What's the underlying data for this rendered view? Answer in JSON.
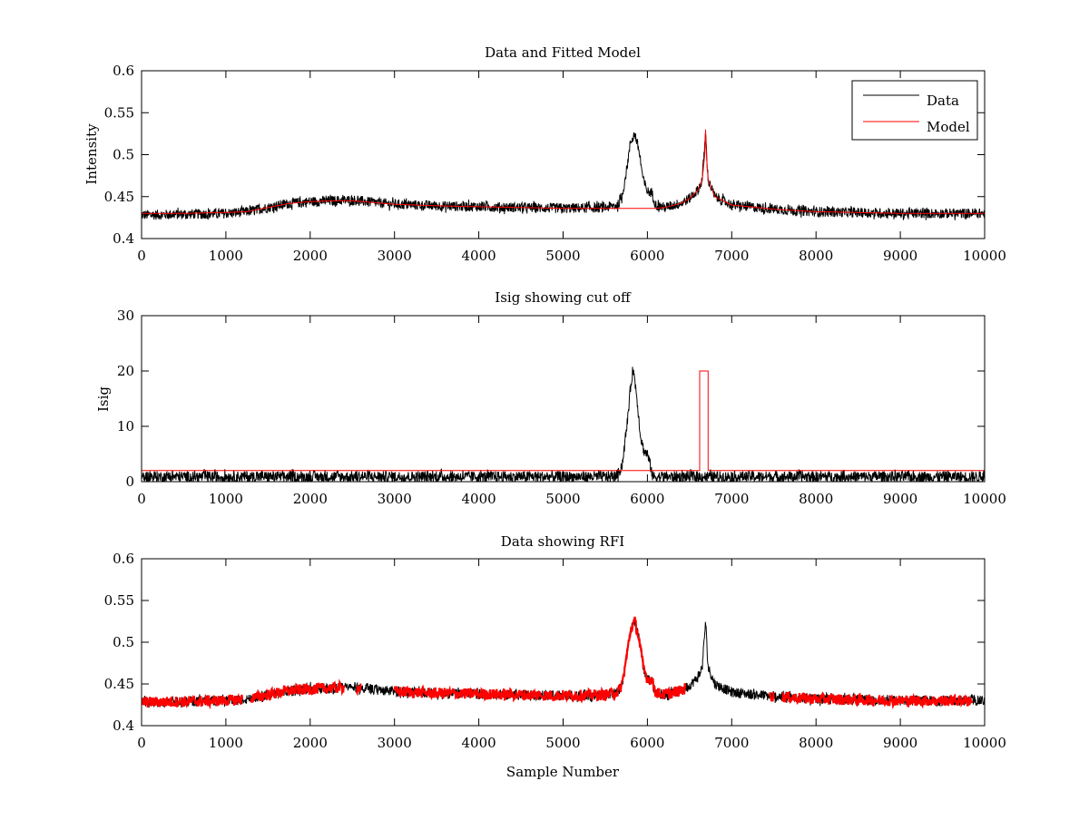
{
  "chart_data": [
    {
      "type": "line",
      "title": "Data and Fitted Model",
      "xlabel": "",
      "ylabel": "Intensity",
      "xlim": [
        0,
        10000
      ],
      "ylim": [
        0.4,
        0.6
      ],
      "xticks": [
        0,
        1000,
        2000,
        3000,
        4000,
        5000,
        6000,
        7000,
        8000,
        9000,
        10000
      ],
      "yticks": [
        0.4,
        0.45,
        0.5,
        0.55,
        0.6
      ],
      "ytick_labels": [
        "0.4",
        "0.45",
        "0.5",
        "0.55",
        "0.6"
      ],
      "legend": {
        "placement": "top-right",
        "entries": [
          "Data",
          "Model"
        ]
      },
      "series": [
        {
          "name": "Data",
          "color": "#000000",
          "noise": 0.006,
          "x": [
            0,
            500,
            1000,
            1250,
            1500,
            1750,
            2000,
            2250,
            2500,
            2750,
            3000,
            3500,
            4000,
            4500,
            5000,
            5500,
            5650,
            5700,
            5750,
            5800,
            5850,
            5900,
            5950,
            6000,
            6050,
            6100,
            6200,
            6400,
            6500,
            6600,
            6650,
            6690,
            6720,
            6800,
            7000,
            7500,
            8000,
            9000,
            10000
          ],
          "y": [
            0.428,
            0.429,
            0.43,
            0.432,
            0.437,
            0.442,
            0.444,
            0.445,
            0.446,
            0.443,
            0.441,
            0.439,
            0.438,
            0.437,
            0.436,
            0.437,
            0.44,
            0.45,
            0.48,
            0.515,
            0.525,
            0.505,
            0.47,
            0.456,
            0.455,
            0.44,
            0.437,
            0.442,
            0.448,
            0.458,
            0.47,
            0.525,
            0.47,
            0.45,
            0.44,
            0.435,
            0.432,
            0.43,
            0.43
          ]
        },
        {
          "name": "Model",
          "color": "#ff0000",
          "noise": 0,
          "x": [
            0,
            500,
            1000,
            1250,
            1500,
            1750,
            2000,
            2250,
            2500,
            2750,
            3000,
            3500,
            4000,
            4500,
            5000,
            5500,
            5650,
            6100,
            6200,
            6400,
            6500,
            6600,
            6650,
            6680,
            6690,
            6700,
            6720,
            6800,
            7000,
            7500,
            8000,
            9000,
            10000
          ],
          "y": [
            0.43,
            0.43,
            0.431,
            0.432,
            0.437,
            0.442,
            0.444,
            0.445,
            0.445,
            0.443,
            0.441,
            0.439,
            0.438,
            0.437,
            0.436,
            0.436,
            0.436,
            0.436,
            0.437,
            0.442,
            0.448,
            0.458,
            0.47,
            0.5,
            0.53,
            0.5,
            0.47,
            0.45,
            0.44,
            0.435,
            0.432,
            0.43,
            0.43
          ]
        }
      ]
    },
    {
      "type": "line",
      "title": "Isig showing cut off",
      "xlabel": "",
      "ylabel": "Isig",
      "xlim": [
        0,
        10000
      ],
      "ylim": [
        0,
        30
      ],
      "xticks": [
        0,
        1000,
        2000,
        3000,
        4000,
        5000,
        6000,
        7000,
        8000,
        9000,
        10000
      ],
      "yticks": [
        0,
        10,
        20,
        30
      ],
      "ytick_labels": [
        "0",
        "10",
        "20",
        "30"
      ],
      "series": [
        {
          "name": "Isig",
          "color": "#000000",
          "noise": 1.0,
          "x": [
            0,
            5600,
            5650,
            5700,
            5750,
            5800,
            5830,
            5870,
            5920,
            5960,
            6000,
            6050,
            6060,
            10000
          ],
          "y": [
            0.9,
            0.9,
            1.3,
            3,
            9,
            17,
            20.5,
            16,
            8,
            5.5,
            5,
            2,
            0.9,
            0.9
          ]
        },
        {
          "name": "Cut off",
          "color": "#ff0000",
          "noise": 0,
          "x": [
            0,
            6620,
            6620,
            6720,
            6720,
            10000
          ],
          "y": [
            2,
            2,
            20,
            20,
            2,
            2
          ]
        }
      ]
    },
    {
      "type": "line",
      "title": "Data showing RFI",
      "xlabel": "Sample Number",
      "ylabel": "",
      "xlim": [
        0,
        10000
      ],
      "ylim": [
        0.4,
        0.6
      ],
      "xticks": [
        0,
        1000,
        2000,
        3000,
        4000,
        5000,
        6000,
        7000,
        8000,
        9000,
        10000
      ],
      "yticks": [
        0.4,
        0.45,
        0.5,
        0.55,
        0.6
      ],
      "ytick_labels": [
        "0.4",
        "0.45",
        "0.5",
        "0.55",
        "0.6"
      ],
      "series_ref": "Data",
      "rfi_color": "#ff0000",
      "rfi_ranges": [
        [
          0,
          1200
        ],
        [
          1300,
          2400
        ],
        [
          2550,
          2600
        ],
        [
          3000,
          6450
        ],
        [
          7450,
          7500
        ],
        [
          7600,
          9850
        ]
      ]
    }
  ]
}
